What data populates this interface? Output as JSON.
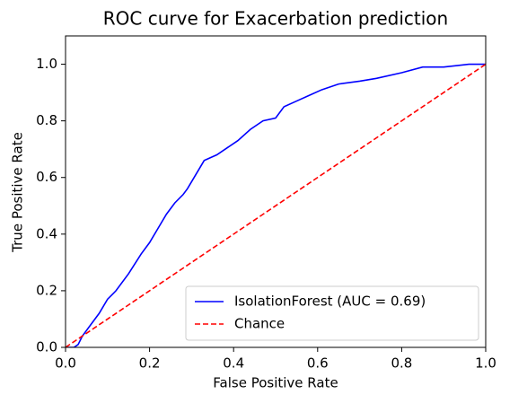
{
  "chart_data": {
    "type": "line",
    "title": "ROC curve for Exacerbation prediction",
    "xlabel": "False Positive Rate",
    "ylabel": "True Positive Rate",
    "xlim": [
      0,
      1
    ],
    "ylim": [
      0,
      1.1
    ],
    "xticks": [
      {
        "value": 0,
        "label": "0.0"
      },
      0.2,
      0.4,
      0.6,
      0.8,
      {
        "value": 1,
        "label": "1.0"
      }
    ],
    "yticks": [
      {
        "value": 0,
        "label": "0.0"
      },
      0.2,
      0.4,
      0.6,
      0.8,
      {
        "value": 1,
        "label": "1.0"
      }
    ],
    "legend": "lower right",
    "series": [
      {
        "name": "IsolationForest (AUC = 0.69)",
        "color": "#0000ff",
        "style": "solid",
        "x": [
          0,
          0.02,
          0.03,
          0.04,
          0.06,
          0.08,
          0.1,
          0.12,
          0.15,
          0.18,
          0.2,
          0.22,
          0.24,
          0.26,
          0.28,
          0.29,
          0.31,
          0.33,
          0.36,
          0.38,
          0.41,
          0.44,
          0.47,
          0.5,
          0.52,
          0.55,
          0.58,
          0.61,
          0.65,
          0.7,
          0.74,
          0.8,
          0.85,
          0.9,
          0.96,
          1
        ],
        "values": [
          0,
          0,
          0.01,
          0.04,
          0.08,
          0.12,
          0.17,
          0.2,
          0.26,
          0.33,
          0.37,
          0.42,
          0.47,
          0.51,
          0.54,
          0.56,
          0.61,
          0.66,
          0.68,
          0.7,
          0.73,
          0.77,
          0.8,
          0.81,
          0.85,
          0.87,
          0.89,
          0.91,
          0.93,
          0.94,
          0.95,
          0.97,
          0.99,
          0.99,
          1,
          1
        ]
      },
      {
        "name": "Chance",
        "color": "#ff0000",
        "style": "dashed",
        "x": [
          0,
          1
        ],
        "values": [
          0,
          1
        ]
      }
    ]
  }
}
